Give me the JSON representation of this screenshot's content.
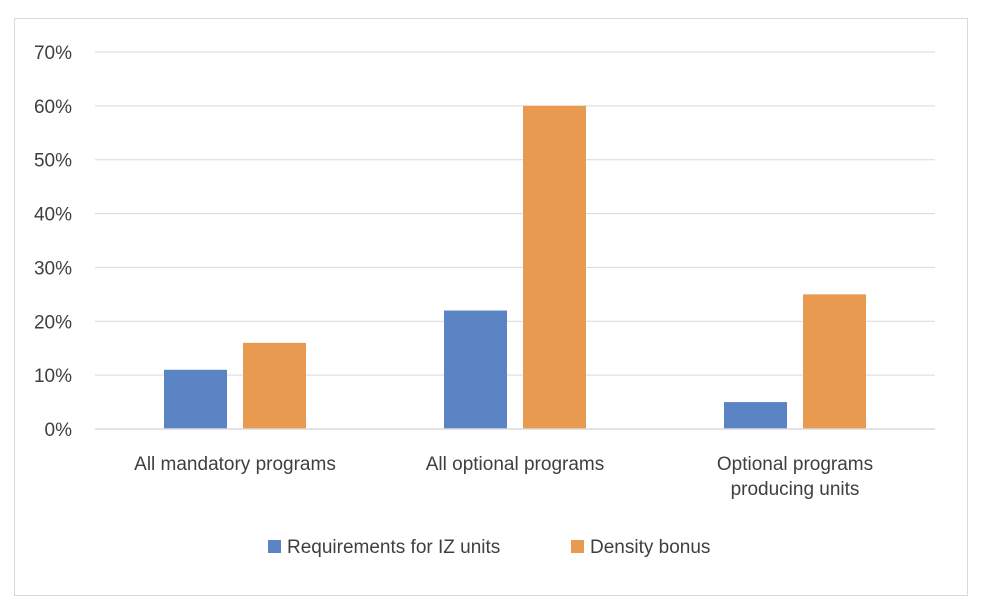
{
  "chart_data": {
    "type": "bar",
    "title": "",
    "xlabel": "",
    "ylabel": "",
    "ylim": [
      0,
      0.7
    ],
    "yticks": [
      0,
      0.1,
      0.2,
      0.3,
      0.4,
      0.5,
      0.6,
      0.7
    ],
    "ytick_labels": [
      "0%",
      "10%",
      "20%",
      "30%",
      "40%",
      "50%",
      "60%",
      "70%"
    ],
    "categories": [
      [
        "All mandatory programs"
      ],
      [
        "All optional programs"
      ],
      [
        "Optional programs",
        "producing units"
      ]
    ],
    "series": [
      {
        "name": "Requirements for IZ units",
        "color": "#5b84c4",
        "values": [
          0.11,
          0.22,
          0.05
        ]
      },
      {
        "name": "Density bonus",
        "color": "#e99a51",
        "values": [
          0.16,
          0.6,
          0.25
        ]
      }
    ],
    "grid": true,
    "legend_position": "bottom"
  }
}
